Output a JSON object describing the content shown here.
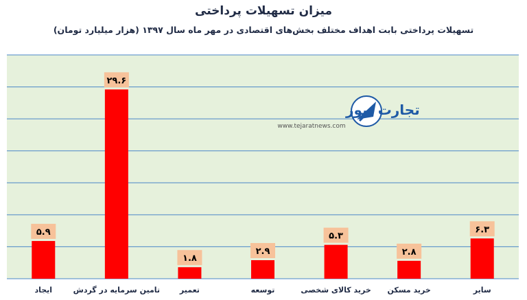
{
  "chart_data": {
    "type": "bar",
    "title": "میزان تسهیلات پرداختی",
    "subtitle": "تسهیلات پرداختی بابت اهداف مختلف بخش‌های اقتصادی در مهر ماه سال ۱۳۹۷ (هزار میلیارد تومان)",
    "categories": [
      "ایجاد",
      "تامین سرمایه در گردش",
      "تعمیر",
      "توسعه",
      "خرید کالای شخصی",
      "خرید مسکن",
      "سایر"
    ],
    "values": [
      5.9,
      29.6,
      1.8,
      2.9,
      5.3,
      2.8,
      6.3
    ],
    "data_labels": [
      "۵.۹",
      "۲۹.۶",
      "۱.۸",
      "۲.۹",
      "۵.۳",
      "۲.۸",
      "۶.۳"
    ],
    "ylim": [
      0,
      35
    ],
    "grid": true,
    "xlabel": "",
    "ylabel": "",
    "colors": {
      "plot_background": "#e6f1dc",
      "bar": "#ff0000",
      "label_box": "#f7c29a",
      "gridline": "#4a86c8",
      "text": "#1f2a44"
    }
  },
  "watermark": {
    "brand": "تجارت نیوز",
    "url": "www.tejaratnews.com"
  }
}
